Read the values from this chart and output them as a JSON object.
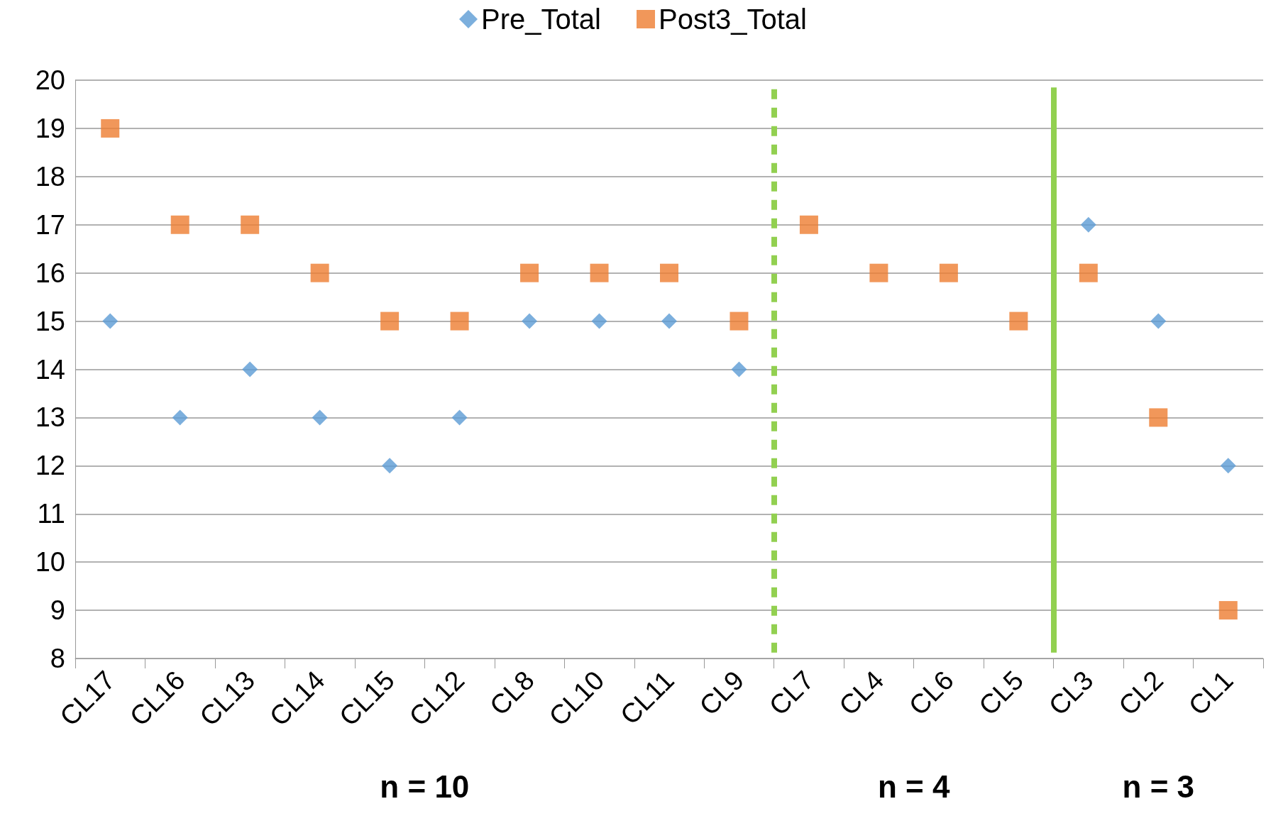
{
  "chart_data": {
    "type": "scatter",
    "categories": [
      "CL17",
      "CL16",
      "CL13",
      "CL14",
      "CL15",
      "CL12",
      "CL8",
      "CL10",
      "CL11",
      "CL9",
      "CL7",
      "CL4",
      "CL6",
      "CL5",
      "CL3",
      "CL2",
      "CL1"
    ],
    "series": [
      {
        "name": "Pre_Total",
        "color": "#5b9bd5",
        "marker": "diamond",
        "values": [
          15,
          13,
          14,
          13,
          12,
          13,
          15,
          15,
          15,
          14,
          null,
          null,
          null,
          null,
          17,
          15,
          12
        ]
      },
      {
        "name": "Post3_Total",
        "color": "#ed7d31",
        "marker": "square",
        "values": [
          19,
          17,
          17,
          16,
          15,
          15,
          16,
          16,
          16,
          15,
          17,
          16,
          16,
          15,
          16,
          13,
          9
        ]
      }
    ],
    "ylim": [
      8,
      20
    ],
    "yticks": [
      8,
      9,
      10,
      11,
      12,
      13,
      14,
      15,
      16,
      17,
      18,
      19,
      20
    ],
    "grid": "y",
    "legend": "top",
    "ref_lines": [
      {
        "axis": "x",
        "value": "CL7",
        "color": "#92d050",
        "line_style": "dashed"
      },
      {
        "axis": "x",
        "value": "CL3",
        "color": "#92d050",
        "line_style": "solid"
      }
    ],
    "annotations": [
      "n = 10",
      "n = 4",
      "n = 3"
    ]
  }
}
